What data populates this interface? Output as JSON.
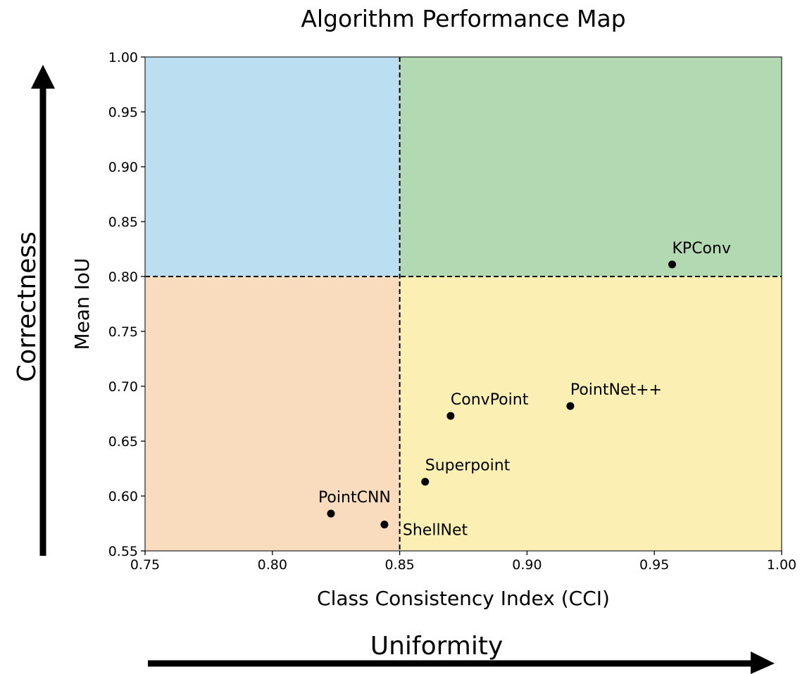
{
  "chart_data": {
    "type": "scatter",
    "title": "Algorithm Performance Map",
    "xlabel": "Class Consistency Index (CCI)",
    "ylabel": "Mean IoU",
    "xlim": [
      0.75,
      1.0
    ],
    "ylim": [
      0.55,
      1.0
    ],
    "x_ticks": [
      "0.75",
      "0.80",
      "0.85",
      "0.90",
      "0.95",
      "1.00"
    ],
    "y_ticks": [
      "0.55",
      "0.60",
      "0.65",
      "0.70",
      "0.75",
      "0.80",
      "0.85",
      "0.90",
      "0.95",
      "1.00"
    ],
    "grid": false,
    "thresholds": {
      "x": 0.85,
      "y": 0.8
    },
    "quadrant_colors": {
      "low_x_high_y": "#bbdff0",
      "high_x_high_y": "#b3d9b3",
      "low_x_low_y": "#f9dbbd",
      "high_x_low_y": "#fcefb4"
    },
    "points": [
      {
        "label": "KPConv",
        "x": 0.957,
        "y": 0.811
      },
      {
        "label": "PointNet++",
        "x": 0.917,
        "y": 0.682
      },
      {
        "label": "ConvPoint",
        "x": 0.87,
        "y": 0.673
      },
      {
        "label": "Superpoint",
        "x": 0.86,
        "y": 0.613
      },
      {
        "label": "PointCNN",
        "x": 0.823,
        "y": 0.584
      },
      {
        "label": "ShellNet",
        "x": 0.844,
        "y": 0.574
      }
    ],
    "annotations": {
      "vertical_arrow_label": "Correctness",
      "horizontal_arrow_label": "Uniformity"
    }
  }
}
